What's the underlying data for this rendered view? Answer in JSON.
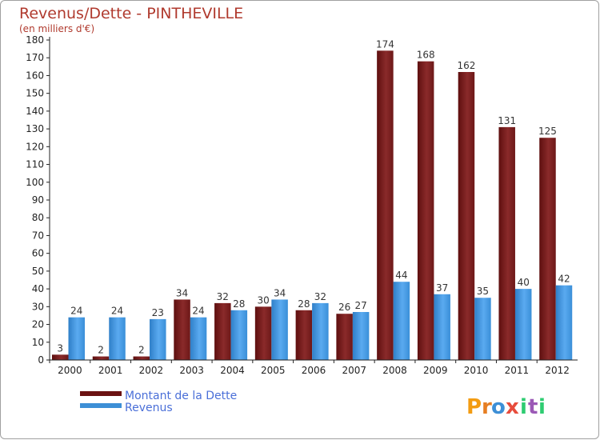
{
  "chart_data": {
    "type": "bar",
    "title": "Revenus/Dette - PINTHEVILLE",
    "subtitle": "(en milliers d'€)",
    "xlabel": "",
    "ylabel": "",
    "categories": [
      "2000",
      "2001",
      "2002",
      "2003",
      "2004",
      "2005",
      "2006",
      "2007",
      "2008",
      "2009",
      "2010",
      "2011",
      "2012"
    ],
    "series": [
      {
        "name": "Montant de la Dette",
        "color": "#7a1b1b",
        "values": [
          3,
          2,
          2,
          34,
          32,
          30,
          28,
          26,
          174,
          168,
          162,
          131,
          125
        ]
      },
      {
        "name": "Revenus",
        "color": "#3d8fd6",
        "values": [
          24,
          24,
          23,
          24,
          28,
          34,
          32,
          27,
          44,
          37,
          35,
          40,
          42
        ]
      }
    ],
    "ylim": [
      0,
      180
    ],
    "ytick_step": 10,
    "grid": false,
    "legend_position": "bottom-left",
    "data_labels": true
  },
  "logo": {
    "text": "Proxiti",
    "colors": [
      "#f39c12",
      "#3d8fd6",
      "#e74c3c",
      "#2ecc71",
      "#9b59b6"
    ]
  }
}
